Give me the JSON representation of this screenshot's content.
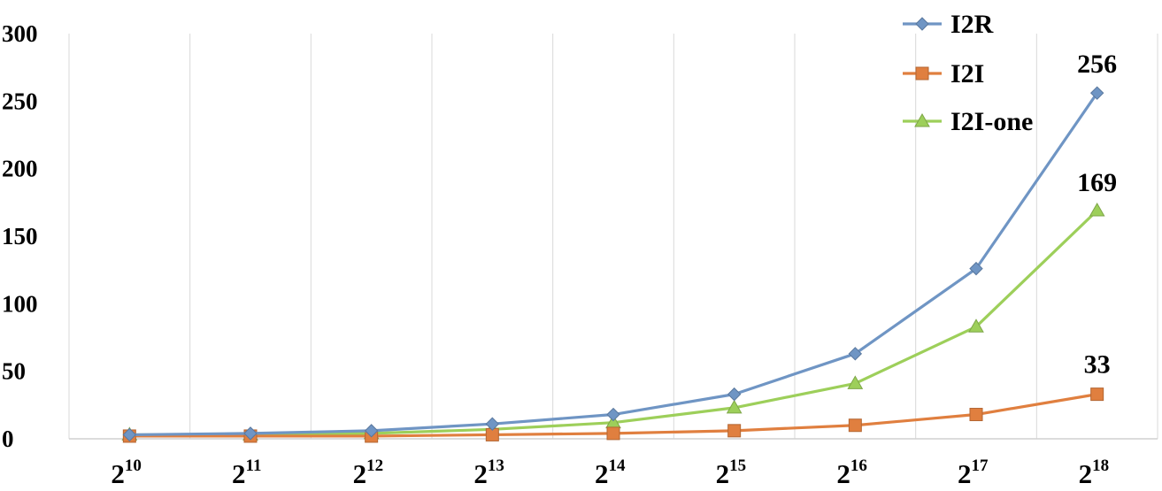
{
  "chart_data": {
    "type": "line",
    "categories": [
      {
        "base": "2",
        "exp": "10"
      },
      {
        "base": "2",
        "exp": "11"
      },
      {
        "base": "2",
        "exp": "12"
      },
      {
        "base": "2",
        "exp": "13"
      },
      {
        "base": "2",
        "exp": "14"
      },
      {
        "base": "2",
        "exp": "15"
      },
      {
        "base": "2",
        "exp": "16"
      },
      {
        "base": "2",
        "exp": "17"
      },
      {
        "base": "2",
        "exp": "18"
      }
    ],
    "series": [
      {
        "name": "I2R",
        "color": "#6f95c4",
        "marker": "diamond",
        "values": [
          3,
          4,
          6,
          11,
          18,
          33,
          63,
          126,
          256
        ]
      },
      {
        "name": "I2I",
        "color": "#e07f3f",
        "marker": "square",
        "values": [
          2,
          2,
          2,
          3,
          4,
          6,
          10,
          18,
          33
        ]
      },
      {
        "name": "I2I-one",
        "color": "#9dcf5a",
        "marker": "triangle",
        "values": [
          3,
          3,
          4,
          7,
          12,
          23,
          41,
          83,
          169
        ]
      }
    ],
    "data_labels": [
      {
        "series": "I2R",
        "index": 8,
        "text": "256"
      },
      {
        "series": "I2I-one",
        "index": 8,
        "text": "169"
      },
      {
        "series": "I2I",
        "index": 8,
        "text": "33"
      }
    ],
    "yticks": [
      "0",
      "50",
      "100",
      "150",
      "200",
      "250",
      "300"
    ],
    "ylim": [
      0,
      300
    ],
    "grid": "vertical",
    "legend_position": "top-right",
    "title": "",
    "xlabel": "",
    "ylabel": ""
  }
}
